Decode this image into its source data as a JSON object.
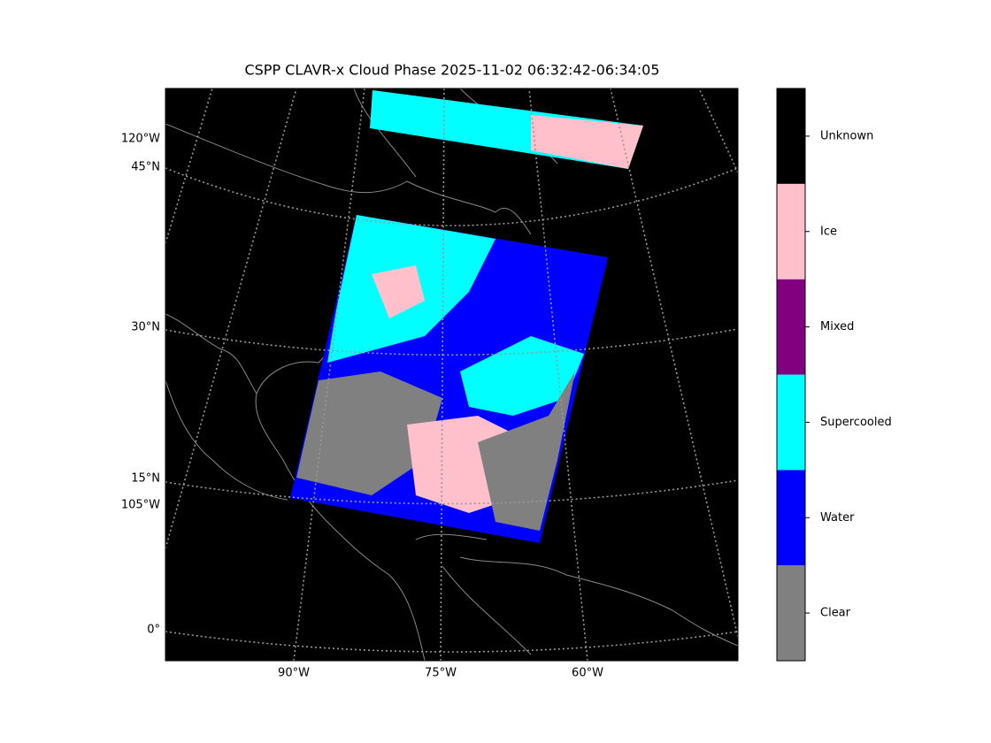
{
  "map": {
    "title": "CSPP CLAVR-x Cloud Phase 2025-11-02 06:32:42-06:34:05",
    "left_labels": [
      "120°W",
      "45°N",
      "30°N",
      "15°N",
      "105°W",
      "0°"
    ],
    "bottom_labels": [
      "90°W",
      "75°W",
      "60°W"
    ],
    "colorbar": {
      "categories": [
        {
          "label": "Clear",
          "color": "#808080"
        },
        {
          "label": "Water",
          "color": "#0000ff"
        },
        {
          "label": "Supercooled",
          "color": "#00ffff"
        },
        {
          "label": "Mixed",
          "color": "#800080"
        },
        {
          "label": "Ice",
          "color": "#ffc0cb"
        },
        {
          "label": "Unknown",
          "color": "#000000"
        }
      ]
    }
  }
}
